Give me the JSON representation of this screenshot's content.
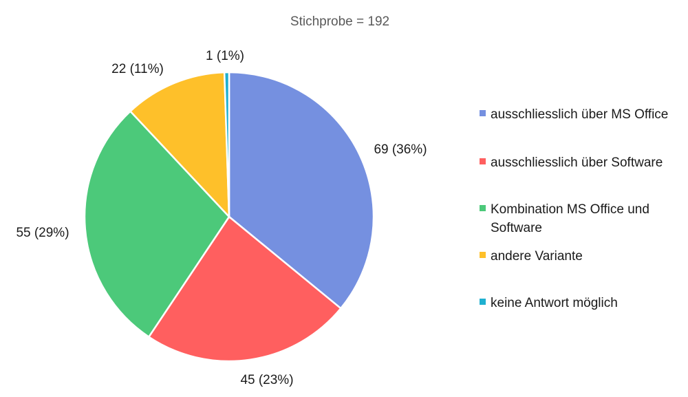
{
  "chart_data": {
    "type": "pie",
    "title": "Stichprobe = 192",
    "legend_position": "right",
    "slices": [
      {
        "name": "ausschliesslich über MS Office",
        "value": 69,
        "label": "69 (36%)",
        "color": "#7590E0"
      },
      {
        "name": "ausschliesslich über Software",
        "value": 45,
        "label": "45 (23%)",
        "color": "#FF5F5F"
      },
      {
        "name": "Kombination MS Office und Software",
        "legend_lines": [
          "Kombination MS Office und",
          "Software"
        ],
        "value": 55,
        "label": "55 (29%)",
        "color": "#4CC97A"
      },
      {
        "name": "andere Variante",
        "value": 22,
        "label": "22 (11%)",
        "color": "#FEC02A"
      },
      {
        "name": "keine Antwort möglich",
        "value": 1,
        "label": "1 (1%)",
        "color": "#1FB0D0"
      }
    ]
  }
}
